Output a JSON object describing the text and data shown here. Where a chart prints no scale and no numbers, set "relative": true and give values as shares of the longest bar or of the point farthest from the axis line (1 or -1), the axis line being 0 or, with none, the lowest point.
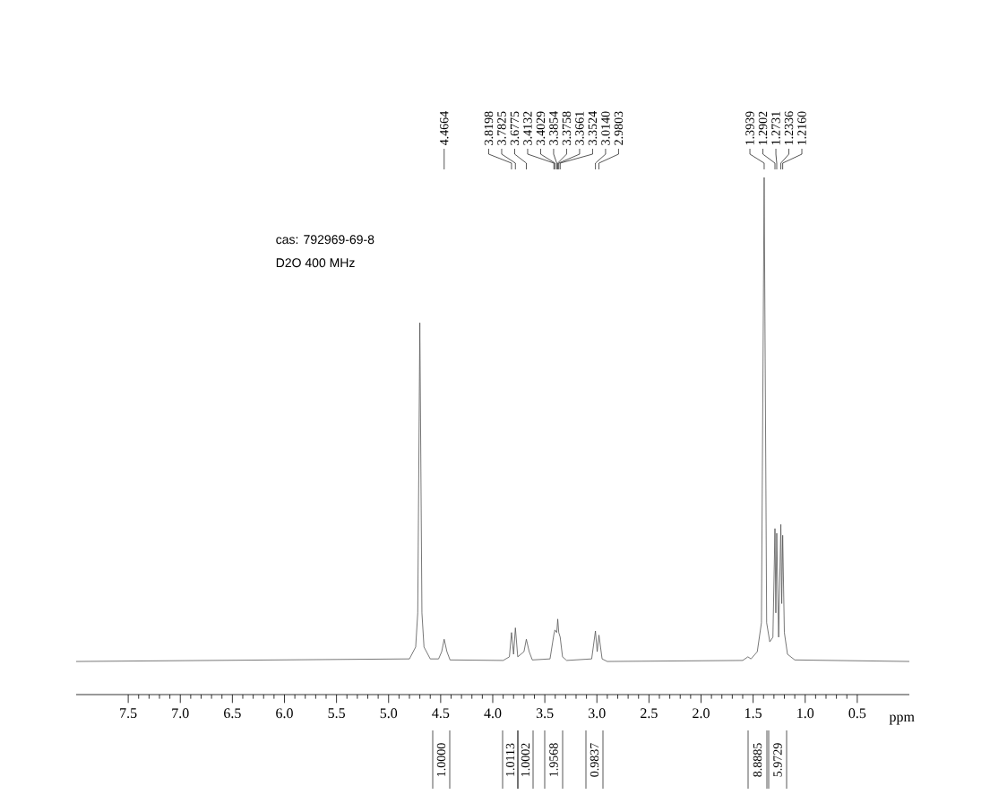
{
  "chart_data": {
    "type": "line",
    "relative": true,
    "title": "cas: 792969-69-8",
    "subtitle": "D2O  400 MHz",
    "xlabel": "ppm",
    "xlim": [
      8.0,
      0.0
    ],
    "xticks": [
      7.5,
      {
        "value": 7,
        "label": "7.0"
      },
      6.5,
      {
        "value": 6,
        "label": "6.0"
      },
      5.5,
      {
        "value": 5,
        "label": "5.0"
      },
      4.5,
      {
        "value": 4,
        "label": "4.0"
      },
      3.5,
      {
        "value": 3,
        "label": "3.0"
      },
      2.5,
      {
        "value": 2,
        "label": "2.0"
      },
      1.5,
      {
        "value": 1,
        "label": "1.0"
      },
      0.5
    ],
    "x": [
      8.0,
      4.8,
      4.74,
      4.72,
      4.7,
      4.68,
      4.66,
      4.6,
      4.52,
      4.49,
      4.4664,
      4.44,
      4.41,
      3.9,
      3.84,
      3.8198,
      3.8,
      3.7825,
      3.76,
      3.7,
      3.6775,
      3.65,
      3.62,
      3.45,
      3.4132,
      3.4029,
      3.3854,
      3.3758,
      3.3661,
      3.3524,
      3.33,
      3.29,
      3.05,
      3.014,
      2.997,
      2.9803,
      2.95,
      2.9,
      1.6,
      1.55,
      1.52,
      1.46,
      1.42,
      1.3939,
      1.37,
      1.34,
      1.31,
      1.2902,
      1.282,
      1.2731,
      1.255,
      1.2336,
      1.225,
      1.216,
      1.2,
      1.17,
      1.1,
      0.0
    ],
    "values": [
      0.064,
      0.069,
      0.092,
      0.158,
      0.719,
      0.158,
      0.092,
      0.069,
      0.069,
      0.083,
      0.107,
      0.083,
      0.067,
      0.066,
      0.073,
      0.12,
      0.078,
      0.129,
      0.073,
      0.083,
      0.107,
      0.083,
      0.067,
      0.069,
      0.116,
      0.125,
      0.12,
      0.146,
      0.12,
      0.111,
      0.073,
      0.066,
      0.069,
      0.123,
      0.083,
      0.115,
      0.069,
      0.064,
      0.066,
      0.073,
      0.069,
      0.083,
      0.139,
      1.0,
      0.139,
      0.102,
      0.111,
      0.321,
      0.158,
      0.312,
      0.111,
      0.329,
      0.176,
      0.308,
      0.12,
      0.078,
      0.067,
      0.064
    ],
    "color": "#555555",
    "annotations": [
      {
        "text": "4.4664",
        "x": 4.4664
      },
      {
        "text": "3.8198",
        "x": 3.8198
      },
      {
        "text": "3.7825",
        "x": 3.7825
      },
      {
        "text": "3.6775",
        "x": 3.6775
      },
      {
        "text": "3.4132",
        "x": 3.4132
      },
      {
        "text": "3.4029",
        "x": 3.4029
      },
      {
        "text": "3.3854",
        "x": 3.3854
      },
      {
        "text": "3.3758",
        "x": 3.3758
      },
      {
        "text": "3.3661",
        "x": 3.3661
      },
      {
        "text": "3.3524",
        "x": 3.3524
      },
      {
        "text": "3.0140",
        "x": 3.014
      },
      {
        "text": "2.9803",
        "x": 2.9803
      },
      {
        "text": "1.3939",
        "x": 1.3939
      },
      {
        "text": "1.2902",
        "x": 1.2902
      },
      {
        "text": "1.2731",
        "x": 1.2731
      },
      {
        "text": "1.2336",
        "x": 1.2336
      },
      {
        "text": "1.2160",
        "x": 1.216
      },
      "1.0000",
      "1.0113",
      "1.0002",
      "1.9568",
      "0.9837",
      "8.8885",
      "5.9729"
    ]
  }
}
